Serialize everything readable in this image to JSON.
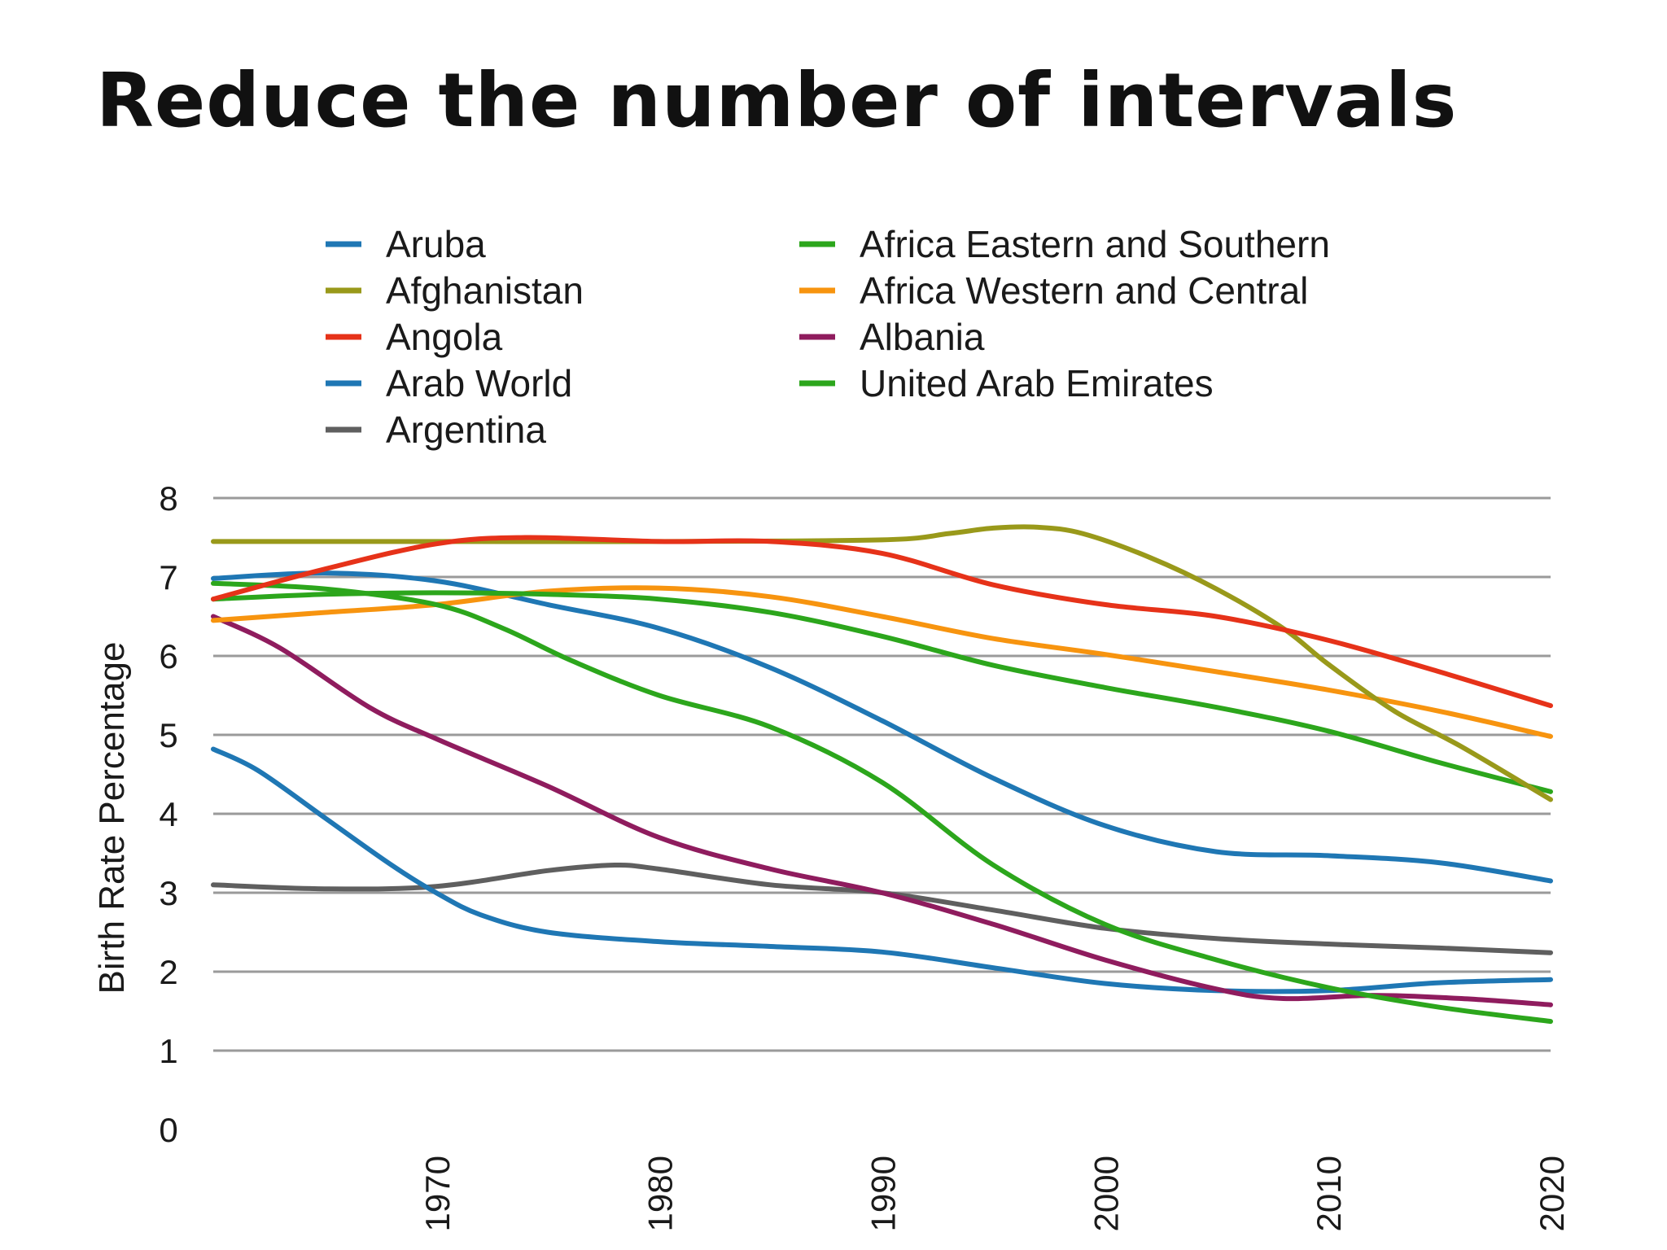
{
  "slide": {
    "title": "Reduce the number of intervals"
  },
  "chart_data": {
    "type": "line",
    "title": "",
    "xlabel": "",
    "ylabel": "Birth Rate Percentage",
    "xlim": [
      1960,
      2020
    ],
    "ylim": [
      0,
      8
    ],
    "yticks": [
      0,
      1,
      2,
      3,
      4,
      5,
      6,
      7,
      8
    ],
    "xticks": [
      1970,
      1980,
      1990,
      2000,
      2010,
      2020
    ],
    "gridlines": "horizontal",
    "legend_position": "top",
    "series": [
      {
        "name": "Aruba",
        "color": "#1f77b4",
        "x": [
          1960,
          1962,
          1965,
          1968,
          1970,
          1972,
          1975,
          1980,
          1985,
          1990,
          1995,
          2000,
          2005,
          2010,
          2015,
          2020
        ],
        "values": [
          4.82,
          4.55,
          3.95,
          3.35,
          3.0,
          2.72,
          2.5,
          2.38,
          2.32,
          2.25,
          2.05,
          1.85,
          1.76,
          1.76,
          1.86,
          1.9
        ]
      },
      {
        "name": "Afghanistan",
        "color": "#99991a",
        "x": [
          1960,
          1970,
          1980,
          1990,
          1993,
          1995,
          1997,
          1999,
          2002,
          2005,
          2008,
          2010,
          2013,
          2016,
          2020
        ],
        "values": [
          7.45,
          7.45,
          7.45,
          7.47,
          7.55,
          7.62,
          7.63,
          7.55,
          7.25,
          6.85,
          6.35,
          5.9,
          5.3,
          4.85,
          4.18
        ]
      },
      {
        "name": "Angola",
        "color": "#e63219",
        "x": [
          1960,
          1965,
          1970,
          1974,
          1980,
          1985,
          1990,
          1995,
          2000,
          2005,
          2010,
          2015,
          2020
        ],
        "values": [
          6.72,
          7.1,
          7.42,
          7.5,
          7.45,
          7.45,
          7.3,
          6.9,
          6.65,
          6.5,
          6.2,
          5.8,
          5.37
        ]
      },
      {
        "name": "Arab World",
        "color": "#1f77b4",
        "x": [
          1960,
          1965,
          1970,
          1975,
          1980,
          1985,
          1990,
          1995,
          2000,
          2005,
          2010,
          2015,
          2020
        ],
        "values": [
          6.98,
          7.05,
          6.95,
          6.65,
          6.35,
          5.85,
          5.18,
          4.45,
          3.85,
          3.52,
          3.47,
          3.38,
          3.15
        ]
      },
      {
        "name": "Argentina",
        "color": "#5f5f5f",
        "x": [
          1960,
          1965,
          1970,
          1975,
          1978,
          1980,
          1985,
          1990,
          1995,
          2000,
          2005,
          2010,
          2015,
          2020
        ],
        "values": [
          3.1,
          3.05,
          3.08,
          3.28,
          3.35,
          3.3,
          3.1,
          3.0,
          2.78,
          2.55,
          2.42,
          2.35,
          2.3,
          2.24
        ]
      },
      {
        "name": "Africa Eastern and Southern",
        "color": "#2ca61c",
        "x": [
          1960,
          1965,
          1970,
          1975,
          1980,
          1985,
          1990,
          1995,
          2000,
          2005,
          2010,
          2015,
          2020
        ],
        "values": [
          6.72,
          6.78,
          6.8,
          6.78,
          6.72,
          6.55,
          6.25,
          5.88,
          5.6,
          5.35,
          5.05,
          4.65,
          4.28
        ]
      },
      {
        "name": "Africa Western and Central",
        "color": "#f7940f",
        "x": [
          1960,
          1965,
          1970,
          1975,
          1980,
          1985,
          1990,
          1995,
          2000,
          2005,
          2010,
          2015,
          2020
        ],
        "values": [
          6.45,
          6.55,
          6.65,
          6.82,
          6.86,
          6.75,
          6.5,
          6.22,
          6.02,
          5.8,
          5.57,
          5.3,
          4.98
        ]
      },
      {
        "name": "Albania",
        "color": "#8f1c5e",
        "x": [
          1960,
          1963,
          1967,
          1970,
          1975,
          1980,
          1985,
          1990,
          1995,
          2000,
          2005,
          2008,
          2012,
          2016,
          2020
        ],
        "values": [
          6.5,
          6.1,
          5.35,
          4.95,
          4.35,
          3.7,
          3.3,
          3.0,
          2.6,
          2.15,
          1.78,
          1.66,
          1.7,
          1.66,
          1.58
        ]
      },
      {
        "name": "United Arab Emirates",
        "color": "#2ca61c",
        "x": [
          1960,
          1965,
          1970,
          1973,
          1976,
          1980,
          1985,
          1990,
          1995,
          2000,
          2005,
          2010,
          2015,
          2020
        ],
        "values": [
          6.92,
          6.85,
          6.65,
          6.35,
          5.95,
          5.5,
          5.1,
          4.4,
          3.35,
          2.6,
          2.15,
          1.8,
          1.55,
          1.37
        ]
      }
    ]
  }
}
